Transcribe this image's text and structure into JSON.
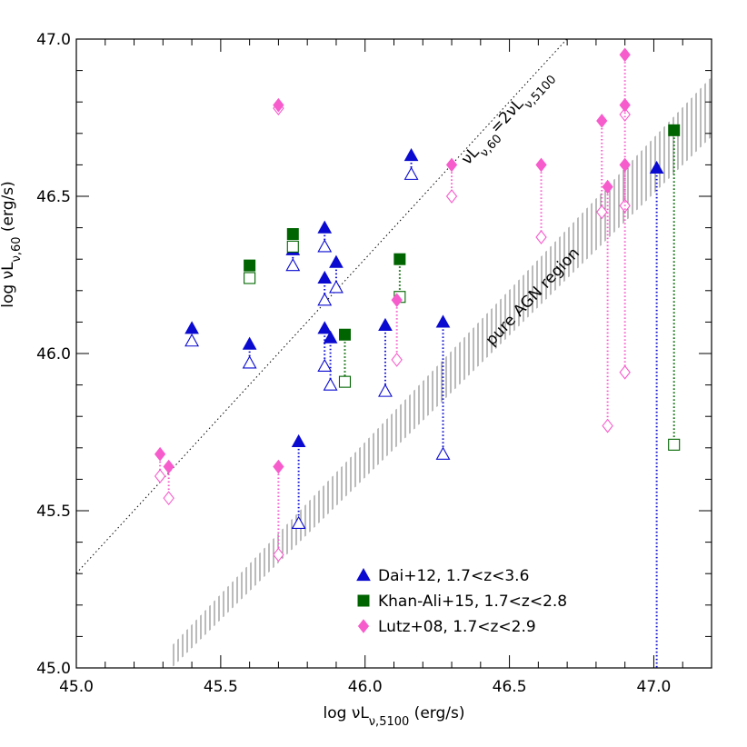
{
  "chart_data": {
    "type": "scatter",
    "x_label": [
      "log νL",
      "ν,5100",
      " (erg/s)"
    ],
    "y_label": [
      "log νL",
      "ν,60",
      " (erg/s)"
    ],
    "xlim": [
      45.0,
      47.2
    ],
    "ylim": [
      45.0,
      47.0
    ],
    "xticks": [
      {
        "value": 45,
        "label": "45.0"
      },
      {
        "value": 45.5,
        "label": "45.5"
      },
      {
        "value": 46,
        "label": "46.0"
      },
      {
        "value": 46.5,
        "label": "46.5"
      },
      {
        "value": 47,
        "label": "47.0"
      }
    ],
    "yticks": [
      {
        "value": 45,
        "label": "45.0"
      },
      {
        "value": 45.5,
        "label": "45.5"
      },
      {
        "value": 46,
        "label": "46.0"
      },
      {
        "value": 46.5,
        "label": "46.5"
      },
      {
        "value": 47,
        "label": "47.0"
      }
    ],
    "xticks_minor": [
      45.1,
      45.2,
      45.3,
      45.4,
      45.6,
      45.7,
      45.8,
      45.9,
      46.1,
      46.2,
      46.3,
      46.4,
      46.6,
      46.7,
      46.8,
      46.9,
      47.1
    ],
    "yticks_minor": [
      45.1,
      45.2,
      45.3,
      45.4,
      45.6,
      45.7,
      45.8,
      45.9,
      46.1,
      46.2,
      46.3,
      46.4,
      46.6,
      46.7,
      46.8,
      46.9
    ],
    "ratio_line": {
      "offset": 0.301,
      "label": [
        "νL",
        "ν,60",
        "=2νL",
        "ν,5100"
      ]
    },
    "region": {
      "label": "pure AGN region",
      "x": [
        45.33,
        47.2,
        47.2,
        45.33
      ],
      "y": [
        45.0,
        46.69,
        46.88,
        45.07
      ]
    },
    "legend": "bottom-right",
    "series": [
      {
        "name": "Dai+12, 1.7<z<3.6",
        "marker": "triangle",
        "color": "#0a0ad0",
        "x": [
          45.4,
          45.6,
          45.75,
          45.86,
          45.86,
          45.9,
          45.86,
          45.88,
          46.07,
          46.16,
          46.27,
          45.77,
          47.01
        ],
        "values": [
          46.08,
          46.03,
          46.33,
          46.4,
          46.24,
          46.29,
          46.08,
          46.05,
          46.09,
          46.63,
          46.1,
          45.72,
          46.59
        ],
        "lower_values": [
          46.04,
          45.97,
          46.28,
          46.34,
          46.17,
          46.21,
          45.96,
          45.9,
          45.88,
          46.57,
          45.68,
          45.46,
          null
        ]
      },
      {
        "name": "Khan-Ali+15, 1.7<z<2.8",
        "marker": "square",
        "color": "#006400",
        "x": [
          45.6,
          45.75,
          45.93,
          46.12,
          47.07
        ],
        "values": [
          46.28,
          46.38,
          46.06,
          46.3,
          46.71
        ],
        "lower_values": [
          46.24,
          46.34,
          45.91,
          46.18,
          45.71
        ]
      },
      {
        "name": "Lutz+08, 1.7<z<2.9",
        "marker": "diamond",
        "color": "#f75ccc",
        "x": [
          45.29,
          45.32,
          45.7,
          45.7,
          46.11,
          46.3,
          46.61,
          46.82,
          46.84,
          46.9,
          46.9,
          46.9
        ],
        "values": [
          45.68,
          45.64,
          46.79,
          45.64,
          46.17,
          46.6,
          46.6,
          46.74,
          46.53,
          46.95,
          46.79,
          46.6
        ],
        "lower_values": [
          45.61,
          45.54,
          46.78,
          45.36,
          45.98,
          46.5,
          46.37,
          46.45,
          45.77,
          46.76,
          46.47,
          45.94
        ]
      }
    ]
  }
}
